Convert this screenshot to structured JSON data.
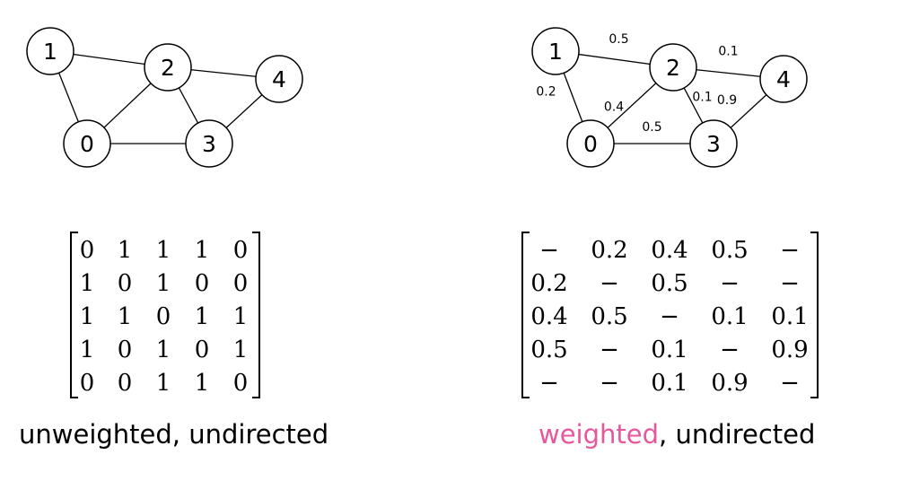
{
  "colors": {
    "accent": "#e8579b",
    "ink": "#000000"
  },
  "unweighted_graph": {
    "nodes": [
      "0",
      "1",
      "2",
      "3",
      "4"
    ],
    "edges": [
      [
        "1",
        "0"
      ],
      [
        "1",
        "2"
      ],
      [
        "2",
        "0"
      ],
      [
        "2",
        "3"
      ],
      [
        "2",
        "4"
      ],
      [
        "0",
        "3"
      ],
      [
        "3",
        "4"
      ]
    ]
  },
  "weighted_graph": {
    "nodes": [
      "0",
      "1",
      "2",
      "3",
      "4"
    ],
    "edges": [
      {
        "from": "1",
        "to": "0",
        "weight": "0.2"
      },
      {
        "from": "1",
        "to": "2",
        "weight": "0.5"
      },
      {
        "from": "2",
        "to": "0",
        "weight": "0.4"
      },
      {
        "from": "2",
        "to": "3",
        "weight": "0.1"
      },
      {
        "from": "2",
        "to": "4",
        "weight": "0.1"
      },
      {
        "from": "0",
        "to": "3",
        "weight": "0.5"
      },
      {
        "from": "3",
        "to": "4",
        "weight": "0.9"
      }
    ]
  },
  "unweighted_matrix": [
    [
      "0",
      "1",
      "1",
      "1",
      "0"
    ],
    [
      "1",
      "0",
      "1",
      "0",
      "0"
    ],
    [
      "1",
      "1",
      "0",
      "1",
      "1"
    ],
    [
      "1",
      "0",
      "1",
      "0",
      "1"
    ],
    [
      "0",
      "0",
      "1",
      "1",
      "0"
    ]
  ],
  "weighted_matrix": [
    [
      "−",
      "0.2",
      "0.4",
      "0.5",
      "−"
    ],
    [
      "0.2",
      "−",
      "0.5",
      "−",
      "−"
    ],
    [
      "0.4",
      "0.5",
      "−",
      "0.1",
      "0.1"
    ],
    [
      "0.5",
      "−",
      "0.1",
      "−",
      "0.9"
    ],
    [
      "−",
      "−",
      "0.1",
      "0.9",
      "−"
    ]
  ],
  "captions": {
    "left": "unweighted, undirected",
    "right_accent": "weighted",
    "right_rest": ", undirected"
  }
}
